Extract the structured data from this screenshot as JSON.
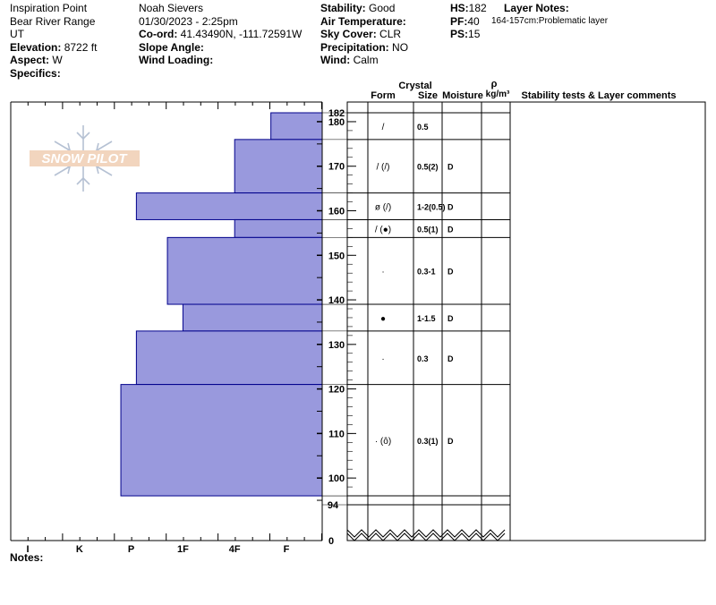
{
  "header": {
    "col1": [
      "Inspiration Point",
      "Bear River Range",
      "UT"
    ],
    "col1_labeled": [
      {
        "label": "Elevation:",
        "value": "8722 ft"
      },
      {
        "label": "Aspect:",
        "value": "W"
      },
      {
        "label": "Specifics:",
        "value": ""
      }
    ],
    "col2": [
      "Noah Sievers",
      "01/30/2023 - 2:25pm"
    ],
    "col2_labeled": [
      {
        "label": "Co-ord:",
        "value": "41.43490N, -111.72591W"
      },
      {
        "label": "Slope Angle:",
        "value": ""
      },
      {
        "label": "Wind Loading:",
        "value": ""
      }
    ],
    "col3_labeled": [
      {
        "label": "Stability:",
        "value": "Good"
      },
      {
        "label": "Air Temperature:",
        "value": ""
      },
      {
        "label": "Sky Cover:",
        "value": "CLR"
      },
      {
        "label": "Precipitation:",
        "value": "NO"
      },
      {
        "label": "Wind:",
        "value": " Calm"
      }
    ],
    "col4_labeled": [
      {
        "label": "HS:",
        "value": "182"
      },
      {
        "label": "PF:",
        "value": "40"
      },
      {
        "label": "PS:",
        "value": "15"
      }
    ],
    "layer_notes_title": "Layer Notes:",
    "layer_notes_text": "164-157cm:Problematic layer"
  },
  "logo_text": "SNOW PILOT",
  "notes_label": "Notes:",
  "table_headers": {
    "crystal": "Crystal",
    "form": "Form",
    "size": "Size",
    "moisture": "Moisture",
    "rho": "ρ",
    "density_unit": "kg/m³",
    "comments": "Stability tests & Layer comments"
  },
  "colors": {
    "bar_fill": "#9999dd",
    "bar_stroke": "#00008b",
    "axis": "#000000"
  },
  "chart_data": {
    "type": "bar",
    "orientation": "horizontal",
    "xlabel": "",
    "ylabel": "",
    "x_categories": [
      "I",
      "K",
      "P",
      "1F",
      "4F",
      "F"
    ],
    "y_ticks": [
      100,
      110,
      120,
      130,
      140,
      150,
      160,
      170,
      180
    ],
    "y_top_label": "182",
    "y_bottom_label": "94",
    "y_zero_label": "0",
    "ylim": [
      94,
      182
    ],
    "hardness_scale_note": "F to I; hardness index where F=1, 4F=2, 1F=3, P=4, K=5, I=6",
    "layers": [
      {
        "top": 182,
        "bottom": 176,
        "hardness": 1.3,
        "form": "/",
        "size": "0.5",
        "moisture": ""
      },
      {
        "top": 176,
        "bottom": 164,
        "hardness": 2,
        "form": "/ (/)",
        "size": "0.5(2)",
        "moisture": "D"
      },
      {
        "top": 164,
        "bottom": 158,
        "hardness": 3.9,
        "form": "ø (/)",
        "size": "1-2(0.5)",
        "moisture": "D"
      },
      {
        "top": 158,
        "bottom": 154,
        "hardness": 2,
        "form": "/ (●)",
        "size": "0.5(1)",
        "moisture": "D"
      },
      {
        "top": 154,
        "bottom": 139,
        "hardness": 3.3,
        "form": "·",
        "size": "0.3-1",
        "moisture": "D"
      },
      {
        "top": 139,
        "bottom": 133,
        "hardness": 3,
        "form": "●",
        "size": "1-1.5",
        "moisture": "D"
      },
      {
        "top": 133,
        "bottom": 121,
        "hardness": 3.9,
        "form": "·",
        "size": "0.3",
        "moisture": "D"
      },
      {
        "top": 121,
        "bottom": 96,
        "hardness": 4.2,
        "form": "· (ô)",
        "size": "0.3(1)",
        "moisture": "D"
      }
    ]
  }
}
